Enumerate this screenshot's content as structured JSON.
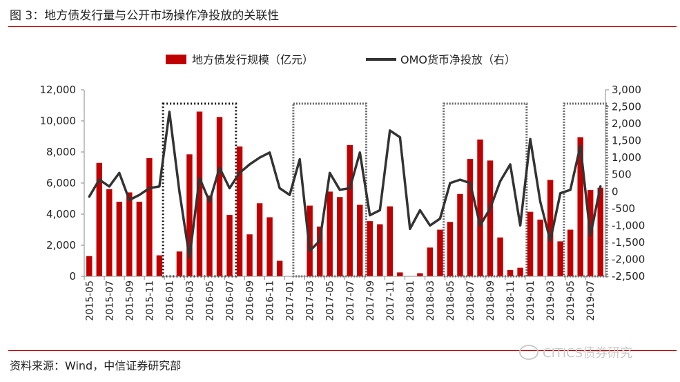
{
  "header": {
    "title": "图 3：地方债发行量与公开市场操作净投放的关联性"
  },
  "footer": {
    "source": "资料来源：Wind，中信证券研究部",
    "watermark": "CITICS债券研究"
  },
  "chart_data": {
    "type": "bar+line",
    "title": "地方债发行量与公开市场操作净投放的关联性",
    "categories": [
      "2015-05",
      "2015-06",
      "2015-07",
      "2015-08",
      "2015-09",
      "2015-10",
      "2015-11",
      "2015-12",
      "2016-01",
      "2016-02",
      "2016-03",
      "2016-04",
      "2016-05",
      "2016-06",
      "2016-07",
      "2016-08",
      "2016-09",
      "2016-10",
      "2016-11",
      "2016-12",
      "2017-01",
      "2017-02",
      "2017-03",
      "2017-04",
      "2017-05",
      "2017-06",
      "2017-07",
      "2017-08",
      "2017-09",
      "2017-10",
      "2017-11",
      "2017-12",
      "2018-01",
      "2018-02",
      "2018-03",
      "2018-04",
      "2018-05",
      "2018-06",
      "2018-07",
      "2018-08",
      "2018-09",
      "2018-10",
      "2018-11",
      "2018-12",
      "2019-01",
      "2019-02",
      "2019-03",
      "2019-04",
      "2019-05",
      "2019-06",
      "2019-07",
      "2019-08"
    ],
    "xtick_labels": [
      "2015-05",
      "2015-07",
      "2015-09",
      "2015-11",
      "2016-01",
      "2016-03",
      "2016-05",
      "2016-07",
      "2016-09",
      "2016-11",
      "2017-01",
      "2017-03",
      "2017-05",
      "2017-07",
      "2017-09",
      "2017-11",
      "2018-01",
      "2018-03",
      "2018-05",
      "2018-07",
      "2018-09",
      "2018-11",
      "2019-01",
      "2019-03",
      "2019-05",
      "2019-07"
    ],
    "series": [
      {
        "name": "地方债发行规模（亿元）",
        "type": "bar",
        "axis": "left",
        "color": "#c00000",
        "values": [
          1300,
          7300,
          5600,
          4800,
          5400,
          4800,
          7600,
          1350,
          0,
          1600,
          7850,
          10600,
          5200,
          10250,
          3950,
          8350,
          2700,
          4700,
          3800,
          1000,
          0,
          0,
          4550,
          3200,
          5450,
          5100,
          8450,
          4600,
          3550,
          3350,
          4500,
          250,
          0,
          200,
          1850,
          3000,
          3500,
          5300,
          7550,
          8800,
          7450,
          2500,
          400,
          550,
          4150,
          3650,
          6200,
          2250,
          3000,
          8950,
          5550,
          5700
        ]
      },
      {
        "name": "OMO货币净投放（右）",
        "type": "line",
        "axis": "right",
        "color": "#333333",
        "values": [
          -150,
          350,
          150,
          550,
          -250,
          -100,
          100,
          150,
          2350,
          0,
          -1950,
          400,
          -300,
          700,
          100,
          550,
          800,
          1000,
          1150,
          100,
          -100,
          950,
          -1750,
          -1450,
          550,
          50,
          100,
          1150,
          -700,
          -550,
          1800,
          1600,
          -1100,
          -550,
          -1000,
          -800,
          250,
          350,
          250,
          -1000,
          -500,
          300,
          800,
          -1000,
          1550,
          -300,
          -1450,
          -50,
          50,
          1350,
          -1300,
          150
        ]
      }
    ],
    "y_left": {
      "range": [
        0,
        12000
      ],
      "ticks": [
        "0",
        "2,000",
        "4,000",
        "6,000",
        "8,000",
        "10,000",
        "12,000"
      ],
      "tick_values": [
        0,
        2000,
        4000,
        6000,
        8000,
        10000,
        12000
      ]
    },
    "y_right": {
      "range": [
        -2500,
        3000
      ],
      "ticks": [
        "-2,500",
        "-2,000",
        "-1,500",
        "-1,000",
        "-500",
        "0",
        "500",
        "1,000",
        "1,500",
        "2,000",
        "2,500",
        "3,000"
      ],
      "tick_values": [
        -2500,
        -2000,
        -1500,
        -1000,
        -500,
        0,
        500,
        1000,
        1500,
        2000,
        2500,
        3000
      ]
    },
    "legend": [
      {
        "label": "地方债发行规模（亿元）",
        "kind": "bar",
        "color": "#c00000"
      },
      {
        "label": "OMO货币净投放（右）",
        "kind": "line",
        "color": "#333333"
      }
    ],
    "highlight_periods": [
      {
        "start": "2016-01",
        "end": "2016-07"
      },
      {
        "start": "2017-02",
        "end": "2017-08"
      },
      {
        "start": "2018-05",
        "end": "2018-12"
      },
      {
        "start": "2019-05",
        "end": "2019-08"
      }
    ]
  }
}
